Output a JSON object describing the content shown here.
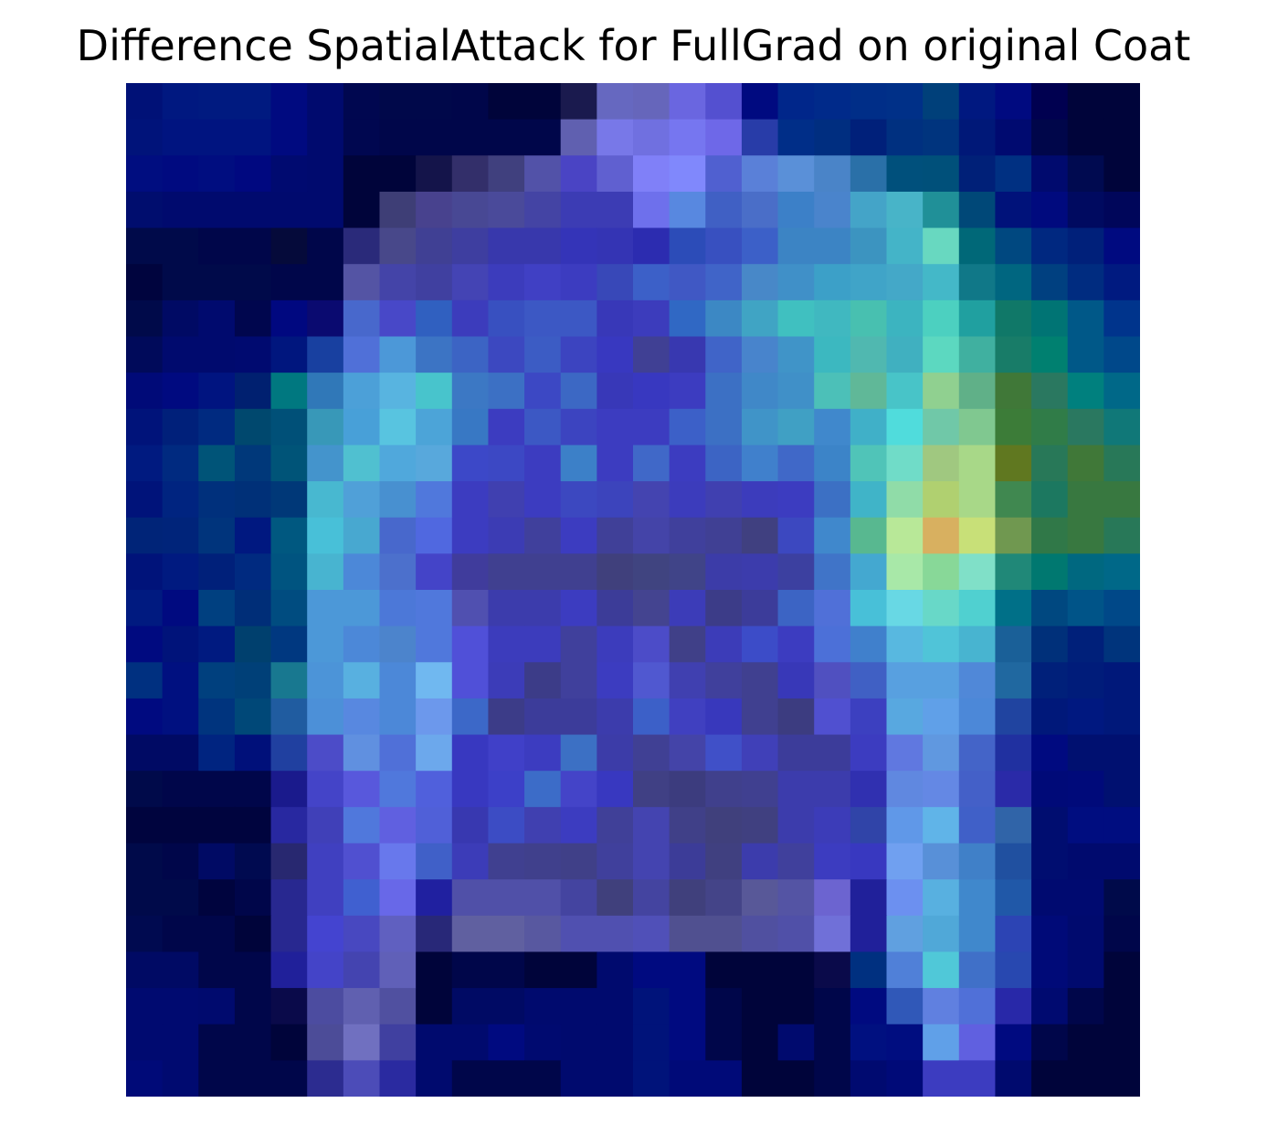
{
  "chart_data": {
    "type": "heatmap",
    "title": "Difference SpatialAttack for FullGrad on original Coat",
    "xlabel": "",
    "ylabel": "",
    "axes_visible": false,
    "grid": false,
    "legend": "none",
    "rows": 28,
    "cols": 28,
    "cells": [
      [
        "#001177",
        "#001880",
        "#001a80",
        "#001a80",
        "#000a80",
        "#000a6e",
        "#000750",
        "#00084a",
        "#00084a",
        "#00064a",
        "#00043a",
        "#00043a",
        "#1a1a4e",
        "#6668c0",
        "#6666bb",
        "#6a66e0",
        "#5450d0",
        "#000a80",
        "#00268a",
        "#002a8a",
        "#002e88",
        "#003088",
        "#00407a",
        "#001880",
        "#000a80",
        "#000050",
        "#00043a",
        "#00043a"
      ],
      [
        "#00137a",
        "#001480",
        "#001480",
        "#001480",
        "#000a80",
        "#000a6e",
        "#000750",
        "#00064a",
        "#00064a",
        "#00064a",
        "#00064a",
        "#00064a",
        "#6060b0",
        "#7878e8",
        "#7070e0",
        "#7676f0",
        "#6e68e8",
        "#283ca8",
        "#002e88",
        "#002e80",
        "#00207a",
        "#003080",
        "#00347e",
        "#001878",
        "#000a70",
        "#00064a",
        "#00043a",
        "#00043a"
      ],
      [
        "#000d80",
        "#000a80",
        "#000d80",
        "#000880",
        "#000a70",
        "#000a6e",
        "#00043a",
        "#00043a",
        "#14144a",
        "#332f6a",
        "#40407e",
        "#5252a8",
        "#4a44c4",
        "#6060d0",
        "#8080f8",
        "#8088fc",
        "#5060d0",
        "#5a80d8",
        "#5a90d8",
        "#4a84c8",
        "#2a70a8",
        "#00507c",
        "#00507a",
        "#002078",
        "#003082",
        "#000a6e",
        "#000a50",
        "#00043a"
      ],
      [
        "#000d6e",
        "#000a6e",
        "#000a6e",
        "#000a6e",
        "#000a6e",
        "#000a6e",
        "#00043a",
        "#3e3e76",
        "#48428e",
        "#484894",
        "#4a4a9a",
        "#4444a4",
        "#3c3cb4",
        "#3c3cb4",
        "#6e70ec",
        "#5888e0",
        "#4060c4",
        "#4a6ec8",
        "#3c80c8",
        "#4a84cc",
        "#44a4c8",
        "#48b4c8",
        "#209098",
        "#004878",
        "#00127a",
        "#000a7e",
        "#000a60",
        "#00065a"
      ],
      [
        "#000a4a",
        "#000a4a",
        "#00064a",
        "#00064a",
        "#050a3a",
        "#00064a",
        "#2a2a7a",
        "#48488a",
        "#404094",
        "#3e3ea0",
        "#3838ac",
        "#3838ac",
        "#3434b8",
        "#3434b4",
        "#2c2cb0",
        "#2c4cb8",
        "#3850c0",
        "#3c60c8",
        "#3c84c4",
        "#3c84c4",
        "#3c94c0",
        "#44b4c8",
        "#68d8c0",
        "#006878",
        "#004880",
        "#002880",
        "#00207a",
        "#000a80"
      ],
      [
        "#00043e",
        "#000a4a",
        "#000a4a",
        "#000a4a",
        "#00064a",
        "#00064a",
        "#5454a4",
        "#4444a8",
        "#4040a0",
        "#4444b4",
        "#3c3cbc",
        "#4040c4",
        "#3c3cc0",
        "#3848b8",
        "#3c60c8",
        "#4058c4",
        "#4064c8",
        "#4888c8",
        "#4090c8",
        "#3ca0c8",
        "#40a4c8",
        "#44a8c8",
        "#44b8c8",
        "#107888",
        "#006680",
        "#004080",
        "#002c80",
        "#001a80"
      ],
      [
        "#000a4a",
        "#000a64",
        "#000a6e",
        "#00064e",
        "#000880",
        "#0a0a70",
        "#4868cc",
        "#4848c8",
        "#3060c0",
        "#3c3cbc",
        "#3850c0",
        "#3c58c4",
        "#3c58c4",
        "#3838b8",
        "#3c3cbc",
        "#3068c4",
        "#3c88c4",
        "#40a4c4",
        "#40c0c0",
        "#40b8c0",
        "#48c0b0",
        "#3cb4c0",
        "#4cd0c0",
        "#20a0a0",
        "#107868",
        "#007474",
        "#005888",
        "#00348c"
      ],
      [
        "#000a5a",
        "#000a6e",
        "#000a6e",
        "#000a70",
        "#00167e",
        "#1840a0",
        "#5070d8",
        "#4c98d8",
        "#3c74c4",
        "#3c64c4",
        "#3c48c0",
        "#3c5cc4",
        "#3c44c0",
        "#3838c0",
        "#404094",
        "#3838b0",
        "#4064c8",
        "#4884cc",
        "#4094c8",
        "#3cb8c0",
        "#50b8b0",
        "#40b0c0",
        "#5cd8c0",
        "#40b0a0",
        "#187c68",
        "#008070",
        "#005888",
        "#00488a"
      ],
      [
        "#000a78",
        "#000a80",
        "#001480",
        "#002070",
        "#007880",
        "#3078b8",
        "#4ca0d8",
        "#58b4e0",
        "#48c4cc",
        "#3c78c4",
        "#3c70c4",
        "#3c48c4",
        "#3c68c4",
        "#3838b8",
        "#3838c0",
        "#3c3cc0",
        "#3c70c4",
        "#4088c8",
        "#4090c8",
        "#4cc0b8",
        "#60b898",
        "#48c4c8",
        "#90d090",
        "#60b088",
        "#407838",
        "#2a7860",
        "#00807e",
        "#006888"
      ],
      [
        "#00137a",
        "#00207a",
        "#002a80",
        "#00486e",
        "#005078",
        "#3898b8",
        "#48a0d8",
        "#58c4e0",
        "#4ca4d8",
        "#3878c4",
        "#3c3cc0",
        "#3c58c4",
        "#3c44c0",
        "#3c3cc0",
        "#3c3cc0",
        "#3c60c8",
        "#3c70c4",
        "#4094c8",
        "#40a0c4",
        "#4088cc",
        "#40b0c8",
        "#50dcdc",
        "#70c8a8",
        "#80c890",
        "#3c7c38",
        "#307c48",
        "#2a7860",
        "#107878"
      ],
      [
        "#001a80",
        "#002a80",
        "#005478",
        "#00387a",
        "#005478",
        "#4494cc",
        "#50c0d0",
        "#50a8dc",
        "#58a8dc",
        "#3c48c8",
        "#3c48c4",
        "#3c3cc0",
        "#3c80c8",
        "#3c3cc0",
        "#4068c8",
        "#3c3cc0",
        "#3c64c4",
        "#4080cc",
        "#4068c8",
        "#3c84c8",
        "#50c4b8",
        "#70dcc8",
        "#a0c880",
        "#a8d888",
        "#607820",
        "#287858",
        "#407838",
        "#287858"
      ],
      [
        "#00137a",
        "#002480",
        "#00307c",
        "#003078",
        "#003878",
        "#48b8d0",
        "#50a0d8",
        "#4890d0",
        "#5078dc",
        "#3c3cc0",
        "#4040b0",
        "#3c3cc0",
        "#3c48c0",
        "#3c44bc",
        "#4444b0",
        "#3c3cbc",
        "#4040b0",
        "#3c3cbc",
        "#3c3cc0",
        "#3c70c4",
        "#40b4c8",
        "#90dca8",
        "#b0d070",
        "#a8d888",
        "#408850",
        "#1c7860",
        "#387840",
        "#387840"
      ],
      [
        "#002478",
        "#00247a",
        "#00347c",
        "#001880",
        "#005880",
        "#48c0d8",
        "#48a8d0",
        "#4868cc",
        "#5068e0",
        "#3c3cc0",
        "#3c3cb4",
        "#40409c",
        "#3c3cc0",
        "#404098",
        "#4444a8",
        "#40409c",
        "#404094",
        "#404080",
        "#3c48c0",
        "#4088cc",
        "#58b890",
        "#b8e898",
        "#d8b060",
        "#c8e078",
        "#709850",
        "#307848",
        "#387840",
        "#287858"
      ],
      [
        "#00137a",
        "#001a80",
        "#00207a",
        "#002a80",
        "#005480",
        "#48b4d0",
        "#4c88d8",
        "#4c70cc",
        "#4444c8",
        "#403c9c",
        "#404090",
        "#404090",
        "#404090",
        "#40407c",
        "#404480",
        "#404488",
        "#3c3ca8",
        "#3c3cac",
        "#3c40a0",
        "#4074c8",
        "#44a8d0",
        "#a8e8a8",
        "#88d898",
        "#80e0c8",
        "#208878",
        "#007870",
        "#006880",
        "#006888"
      ],
      [
        "#001a80",
        "#000a80",
        "#004080",
        "#002e78",
        "#004c80",
        "#4c98d8",
        "#4c98d8",
        "#4c78d8",
        "#5078dc",
        "#5050b0",
        "#3c3cac",
        "#3c3cac",
        "#3c3cc0",
        "#3c3c98",
        "#444490",
        "#3c3cb8",
        "#3c3c88",
        "#3c3c9a",
        "#3c64c4",
        "#5070d8",
        "#48c0d8",
        "#68d8e4",
        "#68d8c8",
        "#50d0d0",
        "#007088",
        "#004880",
        "#005488",
        "#004888"
      ],
      [
        "#000a80",
        "#00137a",
        "#001a80",
        "#00406e",
        "#003880",
        "#4c98d8",
        "#4c88d8",
        "#4c84cc",
        "#5078dc",
        "#5050d8",
        "#3c3cbc",
        "#3c3cbc",
        "#40409c",
        "#3c3cbc",
        "#4c4cc8",
        "#404088",
        "#3c3cb8",
        "#3c4cc8",
        "#3c3cc0",
        "#4c70d8",
        "#4080cc",
        "#58b8e0",
        "#50c4d8",
        "#48b4d0",
        "#1a6098",
        "#00307a",
        "#00207a",
        "#00347c"
      ],
      [
        "#003080",
        "#001080",
        "#00407e",
        "#004078",
        "#187890",
        "#4c94d8",
        "#58b0e0",
        "#4c88d8",
        "#70b8f0",
        "#5050d8",
        "#3c3cb8",
        "#3c3c88",
        "#40409c",
        "#3c3cc0",
        "#5058d0",
        "#4040b0",
        "#40409c",
        "#404090",
        "#3838b8",
        "#5050c0",
        "#4060c4",
        "#58a0e0",
        "#58a0e0",
        "#5088d8",
        "#2068a0",
        "#00207a",
        "#001c7a",
        "#00187a"
      ],
      [
        "#000a80",
        "#001080",
        "#00347e",
        "#004878",
        "#205ca0",
        "#4c90d8",
        "#5888e0",
        "#4c88d8",
        "#6c98ec",
        "#3c68c8",
        "#3c3c88",
        "#3c3c9a",
        "#3c3c9a",
        "#3c3cac",
        "#3c60c8",
        "#4040c0",
        "#3838bc",
        "#404090",
        "#3c3c80",
        "#5050d0",
        "#3c40c0",
        "#58a8e0",
        "#60a0e8",
        "#4c88d8",
        "#2044a0",
        "#00187a",
        "#001880",
        "#00187a"
      ],
      [
        "#000a64",
        "#000a64",
        "#002480",
        "#00107a",
        "#2040a0",
        "#4c4cc8",
        "#6090e0",
        "#5070d8",
        "#6ca8ec",
        "#3838c0",
        "#4040c8",
        "#3c3cc0",
        "#3c70c4",
        "#3c3ca8",
        "#404094",
        "#4444a8",
        "#4050c8",
        "#4040b8",
        "#3c3c9a",
        "#3c3c9a",
        "#3c3cc0",
        "#6078e0",
        "#6098e0",
        "#4464c8",
        "#2030a0",
        "#000a80",
        "#001070",
        "#001070"
      ],
      [
        "#000a4a",
        "#00064a",
        "#00064a",
        "#00064a",
        "#1a1a8c",
        "#4444c8",
        "#5858dc",
        "#5078dc",
        "#5060dc",
        "#3838c0",
        "#3c40c8",
        "#3c6cc8",
        "#4444c8",
        "#3838c0",
        "#404084",
        "#3c3c7e",
        "#40408c",
        "#404090",
        "#3c3cac",
        "#3c3cac",
        "#3030b0",
        "#6088e0",
        "#6488e4",
        "#4460c8",
        "#2a2aa8",
        "#000a78",
        "#000a7a",
        "#001070"
      ],
      [
        "#00043e",
        "#00043e",
        "#00043e",
        "#00043e",
        "#2828a0",
        "#4040b8",
        "#5078dc",
        "#6060e0",
        "#5060d8",
        "#3838b0",
        "#3c4cc4",
        "#4040b0",
        "#3c3cc0",
        "#404098",
        "#4444b0",
        "#404088",
        "#40407c",
        "#404080",
        "#3c3cac",
        "#3c3cb8",
        "#3044a8",
        "#6098e8",
        "#60b4e8",
        "#4060c8",
        "#3064a8",
        "#000d70",
        "#000d80",
        "#000d80"
      ],
      [
        "#000a4a",
        "#00064a",
        "#000a64",
        "#000a50",
        "#282870",
        "#4040c0",
        "#5050d0",
        "#6878ec",
        "#4060c8",
        "#3c3cb8",
        "#404090",
        "#40408c",
        "#404088",
        "#40409c",
        "#4444b0",
        "#3c3c98",
        "#404080",
        "#3c3cac",
        "#40409c",
        "#3c3cc0",
        "#3838c0",
        "#70a0f0",
        "#5890d8",
        "#4080c8",
        "#2050a0",
        "#000d70",
        "#000a6e",
        "#000a6e"
      ],
      [
        "#000a4a",
        "#000a4a",
        "#00043e",
        "#00064a",
        "#282890",
        "#4040c0",
        "#4060d0",
        "#6868e8",
        "#2020a0",
        "#5050a8",
        "#5050a8",
        "#5050a8",
        "#4444a0",
        "#40407c",
        "#4444a0",
        "#40407c",
        "#444488",
        "#585898",
        "#5454a4",
        "#6c64d0",
        "#20209a",
        "#6c90f0",
        "#58b0e0",
        "#4088cc",
        "#2058a8",
        "#000a70",
        "#000a70",
        "#000a4a"
      ],
      [
        "#000a50",
        "#00064a",
        "#00064a",
        "#00043a",
        "#282890",
        "#4444d0",
        "#4848c0",
        "#6060c0",
        "#282878",
        "#6060a0",
        "#6060a0",
        "#5858a0",
        "#5050b0",
        "#5050b0",
        "#5050b8",
        "#505090",
        "#505090",
        "#5050a0",
        "#5050a8",
        "#7070d8",
        "#20209a",
        "#60a0e0",
        "#50a8d8",
        "#4088cc",
        "#2c44b4",
        "#000a78",
        "#000a6e",
        "#00064a"
      ],
      [
        "#000a64",
        "#000a64",
        "#00064a",
        "#00064a",
        "#20209a",
        "#4444c8",
        "#4444b0",
        "#6060b8",
        "#00043a",
        "#00064a",
        "#00064a",
        "#00043a",
        "#00043a",
        "#000a6e",
        "#000a80",
        "#000a80",
        "#00043a",
        "#00043a",
        "#00043a",
        "#0a0a4a",
        "#003080",
        "#5080d8",
        "#50c8d8",
        "#4070c8",
        "#2848b0",
        "#000a78",
        "#000a6e",
        "#00043a"
      ],
      [
        "#000a70",
        "#000a70",
        "#000a6e",
        "#00064a",
        "#0a0a4a",
        "#4c4ca0",
        "#6060b0",
        "#5050a0",
        "#00043a",
        "#000a64",
        "#000a64",
        "#000a6e",
        "#000a6e",
        "#000a6e",
        "#00137a",
        "#000a80",
        "#00064a",
        "#00043a",
        "#00043a",
        "#00064a",
        "#000a80",
        "#3058b8",
        "#6080e0",
        "#5070d8",
        "#2828a8",
        "#000a70",
        "#00064a",
        "#00043a"
      ],
      [
        "#000a70",
        "#000a70",
        "#00064a",
        "#00064a",
        "#00043a",
        "#4c4c98",
        "#7070c0",
        "#4040a0",
        "#000a6e",
        "#000a6e",
        "#000a80",
        "#000a70",
        "#000a6e",
        "#000a6e",
        "#00137a",
        "#000a80",
        "#00064a",
        "#00043a",
        "#000a6e",
        "#00064a",
        "#001080",
        "#000d80",
        "#60a0e8",
        "#6060e0",
        "#000a80",
        "#00064a",
        "#00043a",
        "#00043a"
      ],
      [
        "#000a78",
        "#000a70",
        "#00064a",
        "#00064a",
        "#00064a",
        "#2c2c90",
        "#4c4cb8",
        "#2a2aa0",
        "#000a6e",
        "#00064a",
        "#00064a",
        "#00064a",
        "#000a6e",
        "#000a6e",
        "#00137a",
        "#000a78",
        "#000a78",
        "#00043a",
        "#00043a",
        "#00064a",
        "#000a70",
        "#000a78",
        "#3c3cc0",
        "#3c3cc0",
        "#000a6e",
        "#00043a",
        "#00043a",
        "#00043a"
      ]
    ]
  }
}
